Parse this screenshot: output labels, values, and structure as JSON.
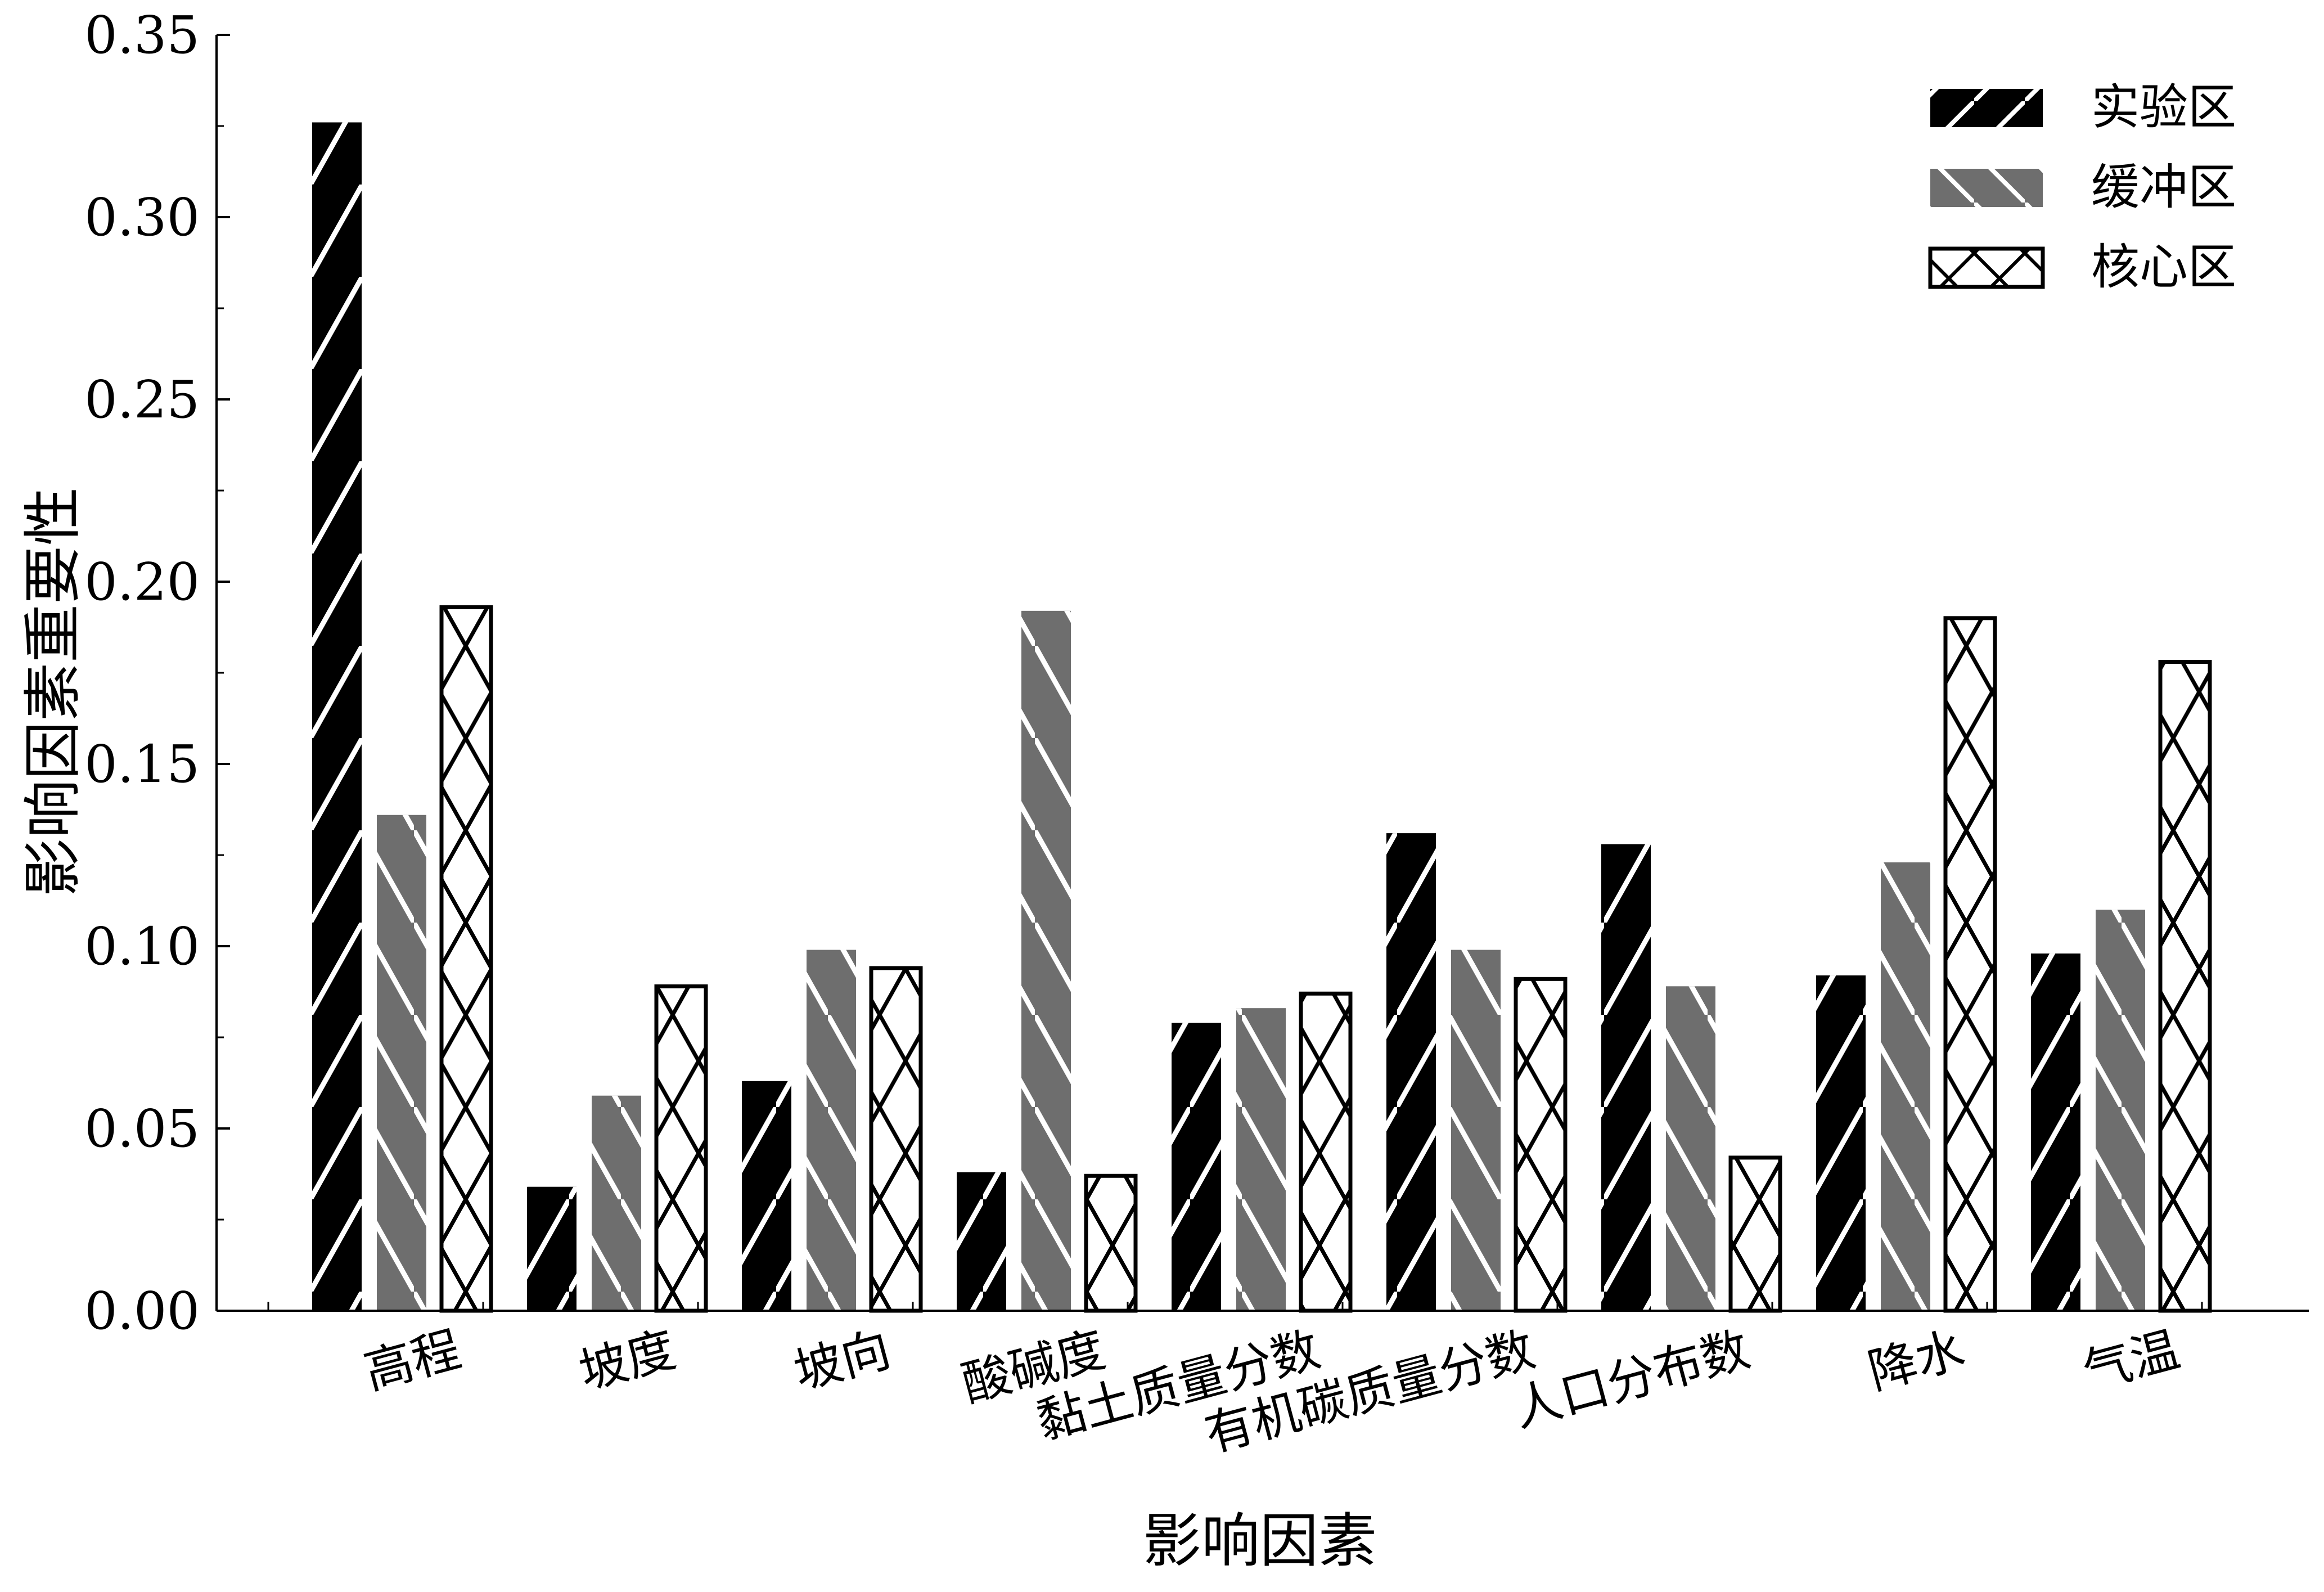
{
  "chart_data": {
    "type": "bar",
    "title": "",
    "xlabel": "影响因素",
    "ylabel": "影响因素重要性",
    "ylim": [
      0,
      0.35
    ],
    "yticks": [
      "0.00",
      "0.05",
      "0.10",
      "0.15",
      "0.20",
      "0.25",
      "0.30",
      "0.35"
    ],
    "grid": false,
    "legend_position": "top-right",
    "categories": [
      "高程",
      "坡度",
      "坡向",
      "酸碱度",
      "黏土质量分数",
      "有机碳质量分数",
      "人口分布数",
      "降水",
      "气温"
    ],
    "series": [
      {
        "name": "实验区",
        "color": "#000000",
        "hatch": "forward-diagonal",
        "values": [
          0.326,
          0.034,
          0.063,
          0.038,
          0.079,
          0.131,
          0.128,
          0.092,
          0.098
        ]
      },
      {
        "name": "缓冲区",
        "color": "#6e6e6e",
        "hatch": "backward-diagonal",
        "values": [
          0.136,
          0.059,
          0.099,
          0.192,
          0.083,
          0.099,
          0.089,
          0.123,
          0.11
        ]
      },
      {
        "name": "核心区",
        "color": "#ffffff",
        "hatch": "cross",
        "values": [
          0.193,
          0.089,
          0.094,
          0.037,
          0.087,
          0.091,
          0.042,
          0.19,
          0.178
        ]
      }
    ]
  }
}
